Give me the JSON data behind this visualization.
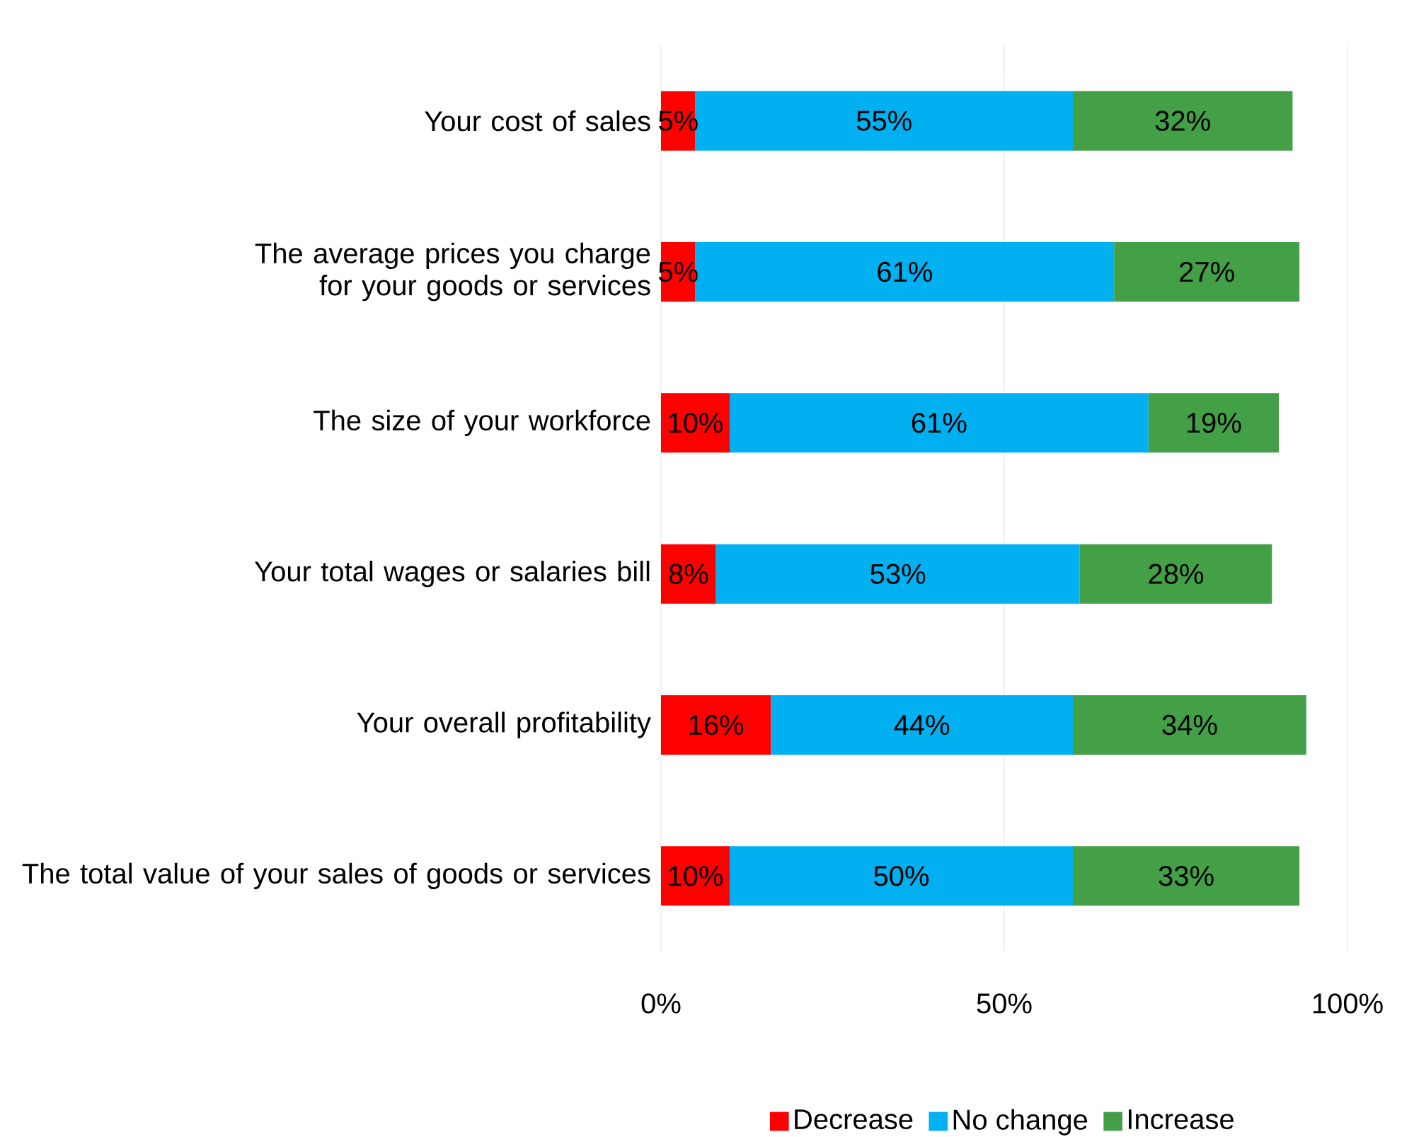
{
  "chart_data": {
    "type": "bar",
    "orientation": "horizontal",
    "stacked": true,
    "categories": [
      "Your cost of sales",
      "The average prices you charge for your goods or services",
      "The size of your workforce",
      "Your total wages or salaries bill",
      "Your overall profitability",
      "The total value of your sales of goods or services"
    ],
    "series": [
      {
        "name": "Decrease",
        "color": "#ff0000",
        "values": [
          5,
          5,
          10,
          8,
          16,
          10
        ],
        "value_labels": [
          "5%",
          "5%",
          "10%",
          "8%",
          "16%",
          "10%"
        ]
      },
      {
        "name": "No change",
        "color": "#00b0f0",
        "values": [
          55,
          61,
          61,
          53,
          44,
          50
        ],
        "value_labels": [
          "55%",
          "61%",
          "61%",
          "53%",
          "44%",
          "50%"
        ]
      },
      {
        "name": "Increase",
        "color": "#43a047",
        "values": [
          32,
          27,
          19,
          28,
          34,
          33
        ],
        "value_labels": [
          "32%",
          "27%",
          "19%",
          "28%",
          "34%",
          "33%"
        ]
      }
    ],
    "xlim": [
      0,
      100
    ],
    "xticks": [
      {
        "value": 0,
        "label": "0%"
      },
      {
        "value": 50,
        "label": "50%"
      },
      {
        "value": 100,
        "label": "100%"
      }
    ],
    "grid": "x",
    "legend": "bottom"
  }
}
